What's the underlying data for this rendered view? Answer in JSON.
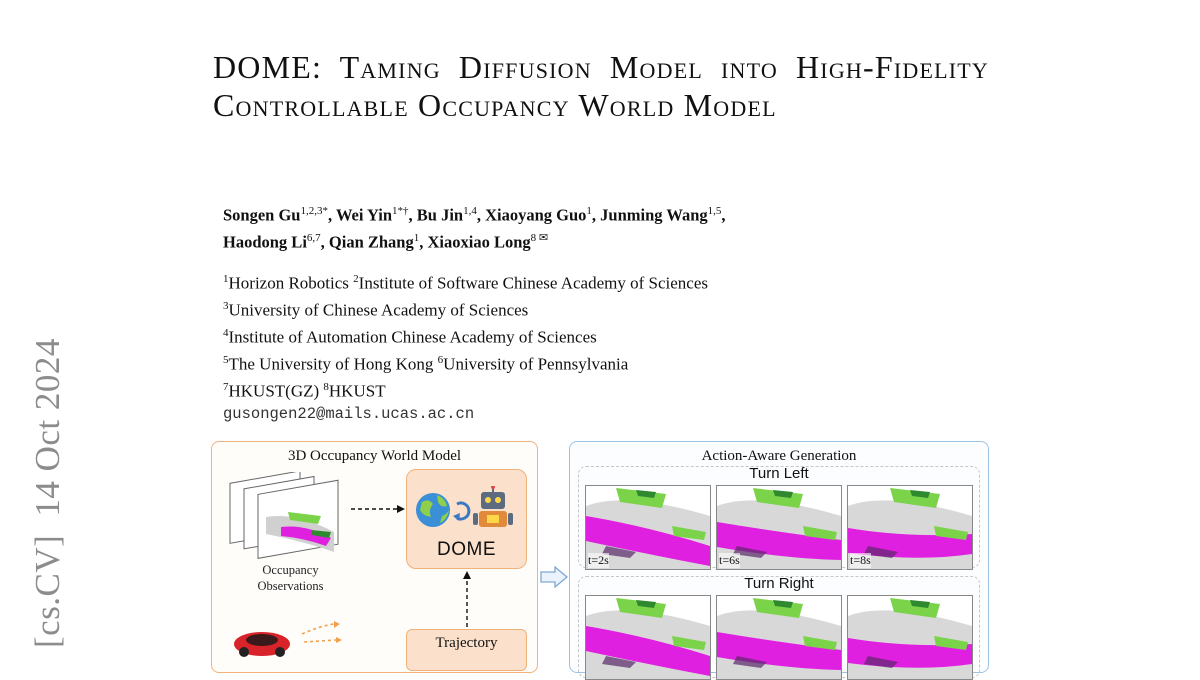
{
  "side_stamp": {
    "category": "[cs.CV]",
    "date": "14 Oct 2024"
  },
  "title": "DOME: Taming Diffusion Model into High-Fidelity Controllable Occupancy World Model",
  "authors": [
    {
      "name": "Songen Gu",
      "sup": "1,2,3*",
      "sep": ", "
    },
    {
      "name": "Wei Yin",
      "sup": "1*†",
      "sep": ", "
    },
    {
      "name": "Bu Jin",
      "sup": "1,4",
      "sep": ", "
    },
    {
      "name": "Xiaoyang Guo",
      "sup": "1",
      "sep": ", "
    },
    {
      "name": "Junming Wang",
      "sup": "1,5",
      "sep": ","
    },
    {
      "name": "Haodong Li",
      "sup": "6,7",
      "sep": ", "
    },
    {
      "name": "Qian Zhang",
      "sup": "1",
      "sep": ", "
    },
    {
      "name": "Xiaoxiao Long",
      "sup": "8 ✉",
      "sep": ""
    }
  ],
  "affiliations": [
    [
      {
        "sup": "1",
        "text": "Horizon Robotics "
      },
      {
        "sup": "2",
        "text": "Institute of Software Chinese Academy of Sciences"
      }
    ],
    [
      {
        "sup": "3",
        "text": "University of Chinese Academy of Sciences"
      }
    ],
    [
      {
        "sup": "4",
        "text": "Institute of Automation Chinese Academy of Sciences"
      }
    ],
    [
      {
        "sup": "5",
        "text": "The University of Hong Kong "
      },
      {
        "sup": "6",
        "text": "University of Pennsylvania"
      }
    ],
    [
      {
        "sup": "7",
        "text": "HKUST(GZ) "
      },
      {
        "sup": "8",
        "text": "HKUST"
      }
    ]
  ],
  "email": "gusongen22@mails.ucas.ac.cn",
  "figure": {
    "left_panel": {
      "title": "3D Occupancy World Model",
      "occupancy_caption_1": "Occupancy",
      "occupancy_caption_2": "Observations",
      "model_label": "DOME",
      "trajectory_label": "Trajectory",
      "accent_color": "#f0b27a"
    },
    "right_panel": {
      "title": "Action-Aware Generation",
      "groups": [
        {
          "label": "Turn Left",
          "frames": [
            "t=2s",
            "t=6s",
            "t=8s"
          ]
        },
        {
          "label": "Turn Right",
          "frames": [
            "",
            "",
            ""
          ]
        }
      ],
      "accent_color": "#9dc3e6"
    },
    "occupancy_colors": {
      "road": "#e020e0",
      "vegetation": "#7bd34a",
      "dark_veg": "#2f8a2f",
      "terrain": "#b8b8b8"
    }
  }
}
